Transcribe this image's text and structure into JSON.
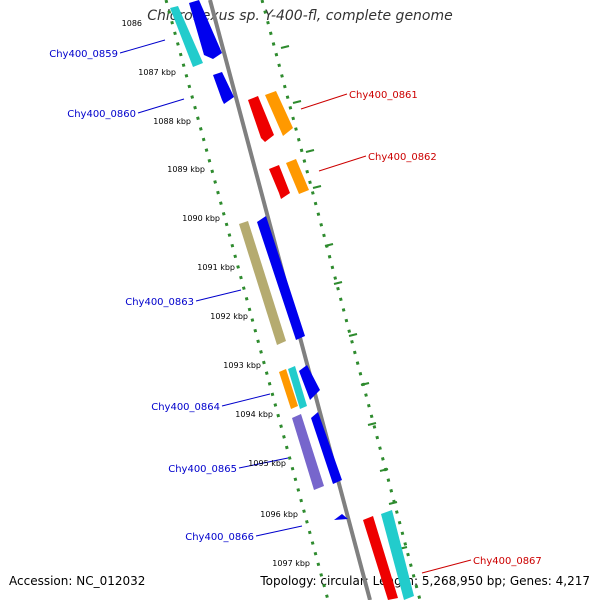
{
  "title": "Chloroflexus sp. Y-400-fl, complete genome",
  "footer": {
    "accession": "Accession: NC_012032",
    "summary": "Topology: circular; Length: 5,268,950 bp; Genes: 4,217"
  },
  "ticks": [
    "1086",
    "1087 kbp",
    "1088 kbp",
    "1089 kbp",
    "1090 kbp",
    "1091 kbp",
    "1092 kbp",
    "1093 kbp",
    "1094 kbp",
    "1095 kbp",
    "1096 kbp",
    "1097 kbp"
  ],
  "colors": {
    "backbone": "#808080",
    "dots": "#2e8b2e",
    "blue": "#0000ee",
    "cyan": "#22cccc",
    "red": "#ee0000",
    "orange": "#ff9900",
    "khaki": "#b5ab70",
    "lavender": "#7766cc",
    "label_left": "#0000cc",
    "label_right": "#cc0000"
  },
  "labels_left": [
    "Chy400_0859",
    "Chy400_0860",
    "Chy400_0863",
    "Chy400_0864",
    "Chy400_0865",
    "Chy400_0866"
  ],
  "labels_right": [
    "Chy400_0861",
    "Chy400_0862",
    "Chy400_0867"
  ]
}
